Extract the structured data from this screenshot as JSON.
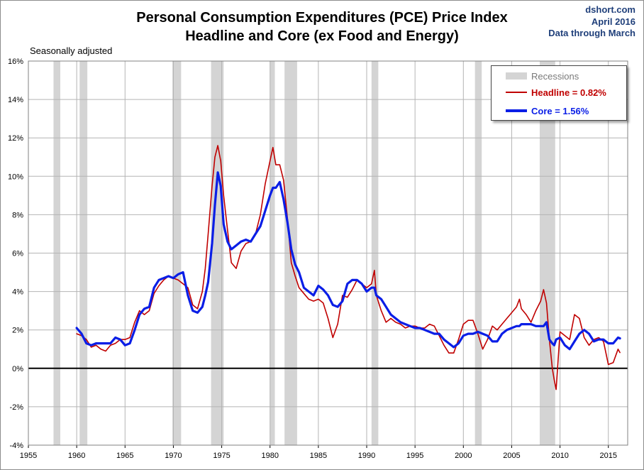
{
  "title_line1": "Personal Consumption Expenditures (PCE) Price Index",
  "title_line2": "Headline and Core (ex Food and Energy)",
  "source": [
    "dshort.com",
    "April 2016",
    "Data through March"
  ],
  "note": "Seasonally adjusted",
  "colors": {
    "headline": "#c00000",
    "core": "#0a1ee6",
    "recession": "#d4d4d4",
    "grid": "#b4b4b4"
  },
  "chart_data": {
    "type": "line",
    "title": "Personal Consumption Expenditures (PCE) Price Index — Headline and Core (ex Food and Energy)",
    "xlabel": "",
    "ylabel": "",
    "xlim": [
      1955,
      2017
    ],
    "ylim": [
      -4,
      16
    ],
    "x_ticks": [
      1955,
      1960,
      1965,
      1970,
      1975,
      1980,
      1985,
      1990,
      1995,
      2000,
      2005,
      2010,
      2015
    ],
    "x_tick_labels": [
      "1955",
      "1960",
      "1965",
      "1970",
      "1975",
      "1980",
      "1985",
      "1990",
      "1995",
      "2000",
      "2005",
      "2010",
      "2015"
    ],
    "y_ticks": [
      -4,
      -2,
      0,
      2,
      4,
      6,
      8,
      10,
      12,
      14,
      16
    ],
    "y_tick_labels": [
      "-4%",
      "-2%",
      "0%",
      "2%",
      "4%",
      "6%",
      "8%",
      "10%",
      "12%",
      "14%",
      "16%"
    ],
    "legend": {
      "position": "top-right",
      "recessions_label": "Recessions",
      "headline_label": "Headline = 0.82%",
      "core_label": "Core = 1.56%"
    },
    "recessions": [
      [
        1957.6,
        1958.3
      ],
      [
        1960.3,
        1961.1
      ],
      [
        1969.9,
        1970.8
      ],
      [
        1973.9,
        1975.2
      ],
      [
        1980.0,
        1980.5
      ],
      [
        1981.5,
        1982.8
      ],
      [
        1990.5,
        1991.2
      ],
      [
        2001.2,
        2001.9
      ],
      [
        2007.9,
        2009.5
      ]
    ],
    "series": [
      {
        "name": "Headline",
        "x": [
          1960.0,
          1960.5,
          1961.0,
          1961.5,
          1962.0,
          1962.5,
          1963.0,
          1963.5,
          1964.0,
          1964.5,
          1965.0,
          1965.5,
          1966.0,
          1966.5,
          1967.0,
          1967.5,
          1968.0,
          1968.5,
          1969.0,
          1969.5,
          1970.0,
          1970.5,
          1971.0,
          1971.5,
          1972.0,
          1972.5,
          1973.0,
          1973.3,
          1973.6,
          1974.0,
          1974.3,
          1974.6,
          1974.9,
          1975.2,
          1975.6,
          1976.0,
          1976.5,
          1977.0,
          1977.5,
          1978.0,
          1978.5,
          1979.0,
          1979.5,
          1980.0,
          1980.3,
          1980.6,
          1981.0,
          1981.4,
          1981.8,
          1982.2,
          1982.6,
          1983.0,
          1983.5,
          1984.0,
          1984.5,
          1985.0,
          1985.5,
          1986.0,
          1986.5,
          1987.0,
          1987.5,
          1988.0,
          1988.5,
          1989.0,
          1989.5,
          1990.0,
          1990.5,
          1990.8,
          1991.0,
          1991.5,
          1992.0,
          1992.5,
          1993.0,
          1993.5,
          1994.0,
          1994.5,
          1995.0,
          1995.5,
          1996.0,
          1996.5,
          1997.0,
          1997.5,
          1998.0,
          1998.5,
          1999.0,
          1999.5,
          2000.0,
          2000.5,
          2001.0,
          2001.5,
          2002.0,
          2002.5,
          2003.0,
          2003.5,
          2004.0,
          2004.5,
          2005.0,
          2005.5,
          2005.8,
          2006.0,
          2006.5,
          2007.0,
          2007.5,
          2008.0,
          2008.3,
          2008.6,
          2008.9,
          2009.2,
          2009.4,
          2009.6,
          2010.0,
          2010.5,
          2011.0,
          2011.5,
          2012.0,
          2012.5,
          2013.0,
          2013.5,
          2014.0,
          2014.5,
          2015.0,
          2015.5,
          2016.0,
          2016.2
        ],
        "values": [
          1.8,
          1.7,
          1.5,
          1.1,
          1.2,
          1.0,
          0.9,
          1.2,
          1.3,
          1.5,
          1.5,
          1.6,
          2.4,
          3.0,
          2.8,
          3.0,
          3.9,
          4.3,
          4.6,
          4.8,
          4.7,
          4.6,
          4.4,
          4.2,
          3.3,
          3.1,
          4.0,
          5.2,
          7.0,
          9.5,
          11.0,
          11.6,
          10.8,
          9.0,
          7.2,
          5.5,
          5.2,
          6.1,
          6.5,
          6.6,
          7.0,
          8.0,
          9.6,
          10.8,
          11.5,
          10.6,
          10.6,
          9.8,
          7.8,
          5.5,
          4.8,
          4.2,
          3.9,
          3.6,
          3.5,
          3.6,
          3.4,
          2.6,
          1.6,
          2.3,
          3.8,
          3.7,
          4.1,
          4.6,
          4.4,
          4.2,
          4.4,
          5.1,
          3.8,
          3.0,
          2.4,
          2.6,
          2.4,
          2.3,
          2.1,
          2.2,
          2.2,
          2.1,
          2.1,
          2.3,
          2.2,
          1.7,
          1.2,
          0.8,
          0.8,
          1.5,
          2.3,
          2.5,
          2.5,
          1.8,
          1.0,
          1.5,
          2.2,
          2.0,
          2.3,
          2.6,
          2.9,
          3.2,
          3.6,
          3.1,
          2.8,
          2.4,
          3.0,
          3.5,
          4.1,
          3.4,
          1.5,
          0.0,
          -0.6,
          -1.1,
          1.9,
          1.7,
          1.5,
          2.8,
          2.6,
          1.6,
          1.2,
          1.5,
          1.6,
          1.4,
          0.2,
          0.3,
          1.0,
          0.82
        ]
      },
      {
        "name": "Core",
        "x": [
          1960.0,
          1960.5,
          1961.0,
          1961.5,
          1962.0,
          1962.5,
          1963.0,
          1963.5,
          1964.0,
          1964.5,
          1965.0,
          1965.5,
          1966.0,
          1966.5,
          1967.0,
          1967.5,
          1968.0,
          1968.5,
          1969.0,
          1969.5,
          1970.0,
          1970.5,
          1971.0,
          1971.5,
          1972.0,
          1972.5,
          1973.0,
          1973.3,
          1973.6,
          1974.0,
          1974.3,
          1974.6,
          1974.9,
          1975.2,
          1975.6,
          1976.0,
          1976.5,
          1977.0,
          1977.5,
          1978.0,
          1978.5,
          1979.0,
          1979.5,
          1980.0,
          1980.3,
          1980.6,
          1981.0,
          1981.4,
          1981.8,
          1982.2,
          1982.6,
          1983.0,
          1983.5,
          1984.0,
          1984.5,
          1985.0,
          1985.5,
          1986.0,
          1986.5,
          1987.0,
          1987.5,
          1988.0,
          1988.5,
          1989.0,
          1989.5,
          1990.0,
          1990.5,
          1990.8,
          1991.0,
          1991.5,
          1992.0,
          1992.5,
          1993.0,
          1993.5,
          1994.0,
          1994.5,
          1995.0,
          1995.5,
          1996.0,
          1996.5,
          1997.0,
          1997.5,
          1998.0,
          1998.5,
          1999.0,
          1999.5,
          2000.0,
          2000.5,
          2001.0,
          2001.5,
          2002.0,
          2002.5,
          2003.0,
          2003.5,
          2004.0,
          2004.5,
          2005.0,
          2005.5,
          2005.8,
          2006.0,
          2006.5,
          2007.0,
          2007.5,
          2008.0,
          2008.3,
          2008.6,
          2008.9,
          2009.2,
          2009.4,
          2009.6,
          2010.0,
          2010.5,
          2011.0,
          2011.5,
          2012.0,
          2012.5,
          2013.0,
          2013.5,
          2014.0,
          2014.5,
          2015.0,
          2015.5,
          2016.0,
          2016.2
        ],
        "values": [
          2.1,
          1.8,
          1.3,
          1.2,
          1.3,
          1.3,
          1.3,
          1.3,
          1.6,
          1.5,
          1.2,
          1.3,
          2.0,
          2.8,
          3.1,
          3.2,
          4.2,
          4.6,
          4.7,
          4.8,
          4.7,
          4.9,
          5.0,
          3.8,
          3.0,
          2.9,
          3.2,
          3.8,
          4.5,
          6.5,
          8.5,
          10.2,
          9.5,
          7.5,
          6.6,
          6.2,
          6.4,
          6.6,
          6.7,
          6.6,
          7.0,
          7.4,
          8.2,
          9.0,
          9.4,
          9.4,
          9.7,
          8.8,
          7.6,
          6.2,
          5.4,
          5.0,
          4.2,
          4.0,
          3.8,
          4.3,
          4.1,
          3.8,
          3.3,
          3.2,
          3.5,
          4.4,
          4.6,
          4.6,
          4.4,
          4.0,
          4.2,
          4.2,
          3.8,
          3.6,
          3.2,
          2.8,
          2.6,
          2.4,
          2.3,
          2.2,
          2.1,
          2.1,
          2.0,
          1.9,
          1.8,
          1.8,
          1.5,
          1.3,
          1.1,
          1.3,
          1.7,
          1.8,
          1.8,
          1.9,
          1.8,
          1.7,
          1.4,
          1.4,
          1.8,
          2.0,
          2.1,
          2.2,
          2.2,
          2.3,
          2.3,
          2.3,
          2.2,
          2.2,
          2.2,
          2.4,
          1.5,
          1.3,
          1.2,
          1.5,
          1.6,
          1.2,
          1.0,
          1.4,
          1.8,
          2.0,
          1.8,
          1.4,
          1.5,
          1.5,
          1.3,
          1.3,
          1.6,
          1.56
        ]
      }
    ]
  }
}
